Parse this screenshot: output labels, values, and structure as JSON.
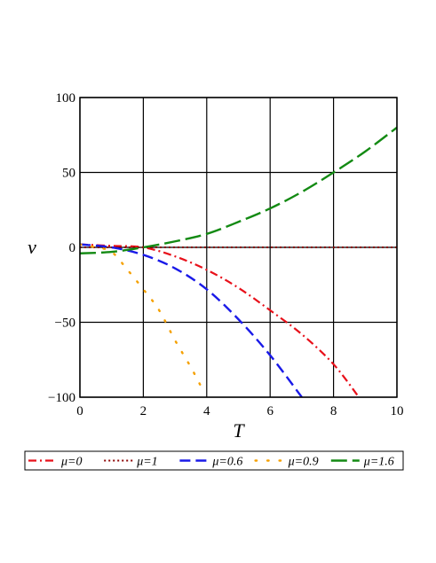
{
  "chart_data": {
    "type": "line",
    "xlabel": "T",
    "ylabel": "ν",
    "xlim": [
      0,
      10
    ],
    "ylim": [
      -100,
      100
    ],
    "x_ticks": [
      "0",
      "2",
      "4",
      "6",
      "8",
      "10"
    ],
    "y_ticks": [
      "100",
      "50",
      "0",
      "−50",
      "−100"
    ],
    "grid": true,
    "legend_position": "bottom",
    "series": [
      {
        "name": "μ=0",
        "color": "#e8101a",
        "style": "dash-dot",
        "x": [
          0,
          1,
          2,
          3,
          4,
          5,
          6,
          7,
          8,
          8.8
        ],
        "y": [
          2,
          1,
          0,
          -6,
          -15,
          -27,
          -42,
          -58,
          -78,
          -100
        ]
      },
      {
        "name": "μ=1",
        "color": "#8b0000",
        "style": "dotted",
        "x": [
          0,
          2,
          4,
          6,
          8,
          10
        ],
        "y": [
          0,
          0,
          0,
          0,
          0,
          0
        ]
      },
      {
        "name": "μ=0.6",
        "color": "#1a1ae8",
        "style": "dashed",
        "x": [
          0,
          1,
          2,
          3,
          4,
          5,
          6,
          7
        ],
        "y": [
          2,
          0,
          -5,
          -14,
          -28,
          -48,
          -72,
          -100
        ]
      },
      {
        "name": "μ=0.9",
        "color": "#f5a000",
        "style": "sparse-dotted",
        "x": [
          0,
          0.5,
          1,
          1.5,
          2,
          2.5,
          3,
          3.5,
          3.8
        ],
        "y": [
          2,
          0,
          -3,
          -15,
          -28,
          -42,
          -62,
          -80,
          -92
        ]
      },
      {
        "name": "μ=1.6",
        "color": "#138a13",
        "style": "long-dash",
        "x": [
          0,
          1,
          2,
          3,
          4,
          5,
          6,
          7,
          8,
          9,
          10
        ],
        "y": [
          -4,
          -3,
          0,
          4,
          9,
          17,
          26,
          37,
          50,
          64,
          80
        ]
      }
    ]
  }
}
